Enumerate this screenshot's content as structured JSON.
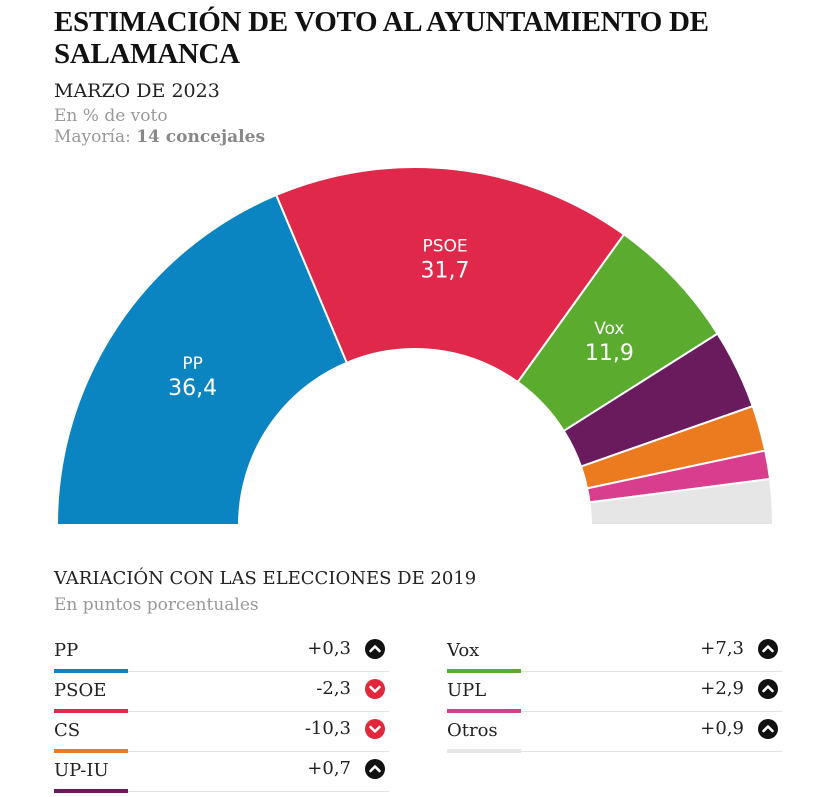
{
  "title": "ESTIMACIÓN DE VOTO AL AYUNTAMIENTO DE SALAMANCA",
  "subtitle": "MARZO DE 2023",
  "unit_note": "En % de voto",
  "majority_label": "Mayoría:",
  "majority_value": "14 concejales",
  "chart_data": {
    "type": "pie",
    "shape": "semicircle",
    "series": [
      {
        "name": "PP",
        "value": 36.4,
        "label": "36,4",
        "color": "#0b84c2"
      },
      {
        "name": "PSOE",
        "value": 31.7,
        "label": "31,7",
        "color": "#e0284a"
      },
      {
        "name": "Vox",
        "value": 11.9,
        "label": "11,9",
        "color": "#5aab2e"
      },
      {
        "value": 7.0,
        "color": "#6a1b5e"
      },
      {
        "value": 4.0,
        "color": "#ec7a1e"
      },
      {
        "value": 2.5,
        "color": "#d93e8e"
      },
      {
        "value": 4.0,
        "color": "#e6e6e6"
      }
    ]
  },
  "variation": {
    "title": "VARIACIÓN CON LAS ELECCIONES DE 2019",
    "subtitle": "En puntos porcentuales",
    "left": [
      {
        "party": "PP",
        "value": "+0,3",
        "direction": "up",
        "color": "#0b84c2"
      },
      {
        "party": "PSOE",
        "value": "-2,3",
        "direction": "down",
        "color": "#e0284a"
      },
      {
        "party": "CS",
        "value": "-10,3",
        "direction": "down",
        "color": "#ec7a1e"
      },
      {
        "party": "UP-IU",
        "value": "+0,7",
        "direction": "up",
        "color": "#6a1b5e"
      }
    ],
    "right": [
      {
        "party": "Vox",
        "value": "+7,3",
        "direction": "up",
        "color": "#5aab2e"
      },
      {
        "party": "UPL",
        "value": "+2,9",
        "direction": "up",
        "color": "#d93e8e"
      },
      {
        "party": "Otros",
        "value": "+0,9",
        "direction": "up",
        "color": "#e6e6e6"
      }
    ]
  }
}
